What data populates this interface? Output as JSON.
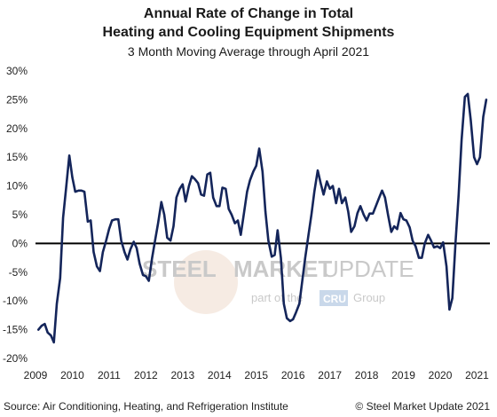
{
  "title_line1": "Annual Rate of Change in Total",
  "title_line2": "Heating and Cooling Equipment Shipments",
  "subtitle": "3 Month Moving Average through April 2021",
  "source": "Source: Air Conditioning, Heating, and Refrigeration Institute",
  "copyright": "© Steel Market Update 2021",
  "watermark": {
    "brand_a": "STEEL",
    "brand_b": "MARKET",
    "brand_c": "UPDATE",
    "tag_a": "part of the",
    "tag_b": "CRU",
    "tag_c": "Group"
  },
  "colors": {
    "line": "#14255a",
    "zero": "#000000",
    "watermark": "#c9c9c9"
  },
  "chart_data": {
    "type": "line",
    "title": "Annual Rate of Change in Total Heating and Cooling Equipment Shipments",
    "subtitle": "3 Month Moving Average through April 2021",
    "xlabel": "",
    "ylabel": "",
    "xlim": [
      2009.0,
      2021.35
    ],
    "ylim": [
      -20,
      30
    ],
    "yticks": [
      30,
      25,
      20,
      15,
      10,
      5,
      0,
      -5,
      -10,
      -15,
      -20
    ],
    "ytick_labels": [
      "30%",
      "25%",
      "20%",
      "15%",
      "10%",
      "5%",
      "0%",
      "-5%",
      "-10%",
      "-15%",
      "-20%"
    ],
    "xticks": [
      2009,
      2010,
      2011,
      2012,
      2013,
      2014,
      2015,
      2016,
      2017,
      2018,
      2019,
      2020,
      2021
    ],
    "xtick_labels": [
      "2009",
      "2010",
      "2011",
      "2012",
      "2013",
      "2014",
      "2015",
      "2016",
      "2017",
      "2018",
      "2019",
      "2020",
      "2021"
    ],
    "grid": false,
    "series": [
      {
        "points": [
          [
            2009.08,
            -15.0
          ],
          [
            2009.17,
            -14.3
          ],
          [
            2009.25,
            -14.0
          ],
          [
            2009.33,
            -15.5
          ],
          [
            2009.42,
            -16.0
          ],
          [
            2009.5,
            -17.2
          ],
          [
            2009.58,
            -10.5
          ],
          [
            2009.67,
            -6.0
          ],
          [
            2009.75,
            4.5
          ],
          [
            2009.83,
            9.5
          ],
          [
            2009.92,
            15.3
          ],
          [
            2010.0,
            11.5
          ],
          [
            2010.08,
            9.0
          ],
          [
            2010.17,
            9.2
          ],
          [
            2010.25,
            9.2
          ],
          [
            2010.33,
            9.0
          ],
          [
            2010.42,
            3.8
          ],
          [
            2010.5,
            4.0
          ],
          [
            2010.58,
            -1.5
          ],
          [
            2010.67,
            -4.0
          ],
          [
            2010.75,
            -4.8
          ],
          [
            2010.83,
            -1.5
          ],
          [
            2010.92,
            0.5
          ],
          [
            2011.0,
            2.5
          ],
          [
            2011.08,
            4.0
          ],
          [
            2011.17,
            4.2
          ],
          [
            2011.25,
            4.2
          ],
          [
            2011.33,
            0.5
          ],
          [
            2011.42,
            -1.5
          ],
          [
            2011.5,
            -2.8
          ],
          [
            2011.58,
            -1.0
          ],
          [
            2011.67,
            0.3
          ],
          [
            2011.75,
            -0.8
          ],
          [
            2011.83,
            -3.5
          ],
          [
            2011.92,
            -5.5
          ],
          [
            2012.0,
            -5.7
          ],
          [
            2012.08,
            -6.5
          ],
          [
            2012.17,
            -2.5
          ],
          [
            2012.25,
            0.5
          ],
          [
            2012.33,
            3.5
          ],
          [
            2012.42,
            7.2
          ],
          [
            2012.5,
            5.0
          ],
          [
            2012.58,
            1.0
          ],
          [
            2012.67,
            0.5
          ],
          [
            2012.75,
            3.0
          ],
          [
            2012.83,
            8.0
          ],
          [
            2012.92,
            9.5
          ],
          [
            2013.0,
            10.3
          ],
          [
            2013.08,
            7.3
          ],
          [
            2013.17,
            10.0
          ],
          [
            2013.25,
            11.7
          ],
          [
            2013.33,
            11.2
          ],
          [
            2013.42,
            10.5
          ],
          [
            2013.5,
            8.5
          ],
          [
            2013.58,
            8.3
          ],
          [
            2013.67,
            12.0
          ],
          [
            2013.75,
            12.3
          ],
          [
            2013.83,
            8.0
          ],
          [
            2013.92,
            6.5
          ],
          [
            2014.0,
            6.5
          ],
          [
            2014.08,
            9.7
          ],
          [
            2014.17,
            9.5
          ],
          [
            2014.25,
            6.0
          ],
          [
            2014.33,
            5.0
          ],
          [
            2014.42,
            3.5
          ],
          [
            2014.5,
            4.0
          ],
          [
            2014.58,
            1.5
          ],
          [
            2014.67,
            5.5
          ],
          [
            2014.75,
            9.0
          ],
          [
            2014.83,
            11.0
          ],
          [
            2014.92,
            12.5
          ],
          [
            2015.0,
            13.5
          ],
          [
            2015.08,
            16.5
          ],
          [
            2015.17,
            12.5
          ],
          [
            2015.25,
            5.5
          ],
          [
            2015.33,
            0.5
          ],
          [
            2015.42,
            -2.3
          ],
          [
            2015.5,
            -2.0
          ],
          [
            2015.58,
            2.3
          ],
          [
            2015.67,
            -2.5
          ],
          [
            2015.75,
            -10.5
          ],
          [
            2015.83,
            -13.0
          ],
          [
            2015.92,
            -13.5
          ],
          [
            2016.0,
            -13.2
          ],
          [
            2016.08,
            -12.0
          ],
          [
            2016.17,
            -10.5
          ],
          [
            2016.25,
            -6.5
          ],
          [
            2016.33,
            -2.5
          ],
          [
            2016.42,
            1.5
          ],
          [
            2016.5,
            5.0
          ],
          [
            2016.58,
            9.0
          ],
          [
            2016.67,
            12.7
          ],
          [
            2016.75,
            10.5
          ],
          [
            2016.83,
            8.5
          ],
          [
            2016.92,
            10.8
          ],
          [
            2017.0,
            9.5
          ],
          [
            2017.08,
            10.0
          ],
          [
            2017.17,
            7.0
          ],
          [
            2017.25,
            9.5
          ],
          [
            2017.33,
            7.0
          ],
          [
            2017.42,
            8.0
          ],
          [
            2017.5,
            5.5
          ],
          [
            2017.58,
            2.0
          ],
          [
            2017.67,
            3.0
          ],
          [
            2017.75,
            5.3
          ],
          [
            2017.83,
            6.5
          ],
          [
            2017.92,
            5.0
          ],
          [
            2018.0,
            4.0
          ],
          [
            2018.08,
            5.2
          ],
          [
            2018.17,
            5.2
          ],
          [
            2018.25,
            6.5
          ],
          [
            2018.33,
            7.8
          ],
          [
            2018.42,
            9.2
          ],
          [
            2018.5,
            8.0
          ],
          [
            2018.58,
            5.0
          ],
          [
            2018.67,
            2.0
          ],
          [
            2018.75,
            3.0
          ],
          [
            2018.83,
            2.5
          ],
          [
            2018.92,
            5.3
          ],
          [
            2019.0,
            4.2
          ],
          [
            2019.08,
            4.0
          ],
          [
            2019.17,
            2.8
          ],
          [
            2019.25,
            0.5
          ],
          [
            2019.33,
            -0.5
          ],
          [
            2019.42,
            -2.5
          ],
          [
            2019.5,
            -2.5
          ],
          [
            2019.58,
            0.0
          ],
          [
            2019.67,
            1.5
          ],
          [
            2019.75,
            0.5
          ],
          [
            2019.83,
            -0.7
          ],
          [
            2019.92,
            -0.5
          ],
          [
            2020.0,
            -0.8
          ],
          [
            2020.08,
            0.2
          ],
          [
            2020.17,
            -4.0
          ],
          [
            2020.25,
            -11.5
          ],
          [
            2020.33,
            -9.5
          ],
          [
            2020.42,
            0.5
          ],
          [
            2020.5,
            8.5
          ],
          [
            2020.58,
            18.0
          ],
          [
            2020.67,
            25.5
          ],
          [
            2020.75,
            26.0
          ],
          [
            2020.83,
            21.5
          ],
          [
            2020.92,
            15.0
          ],
          [
            2021.0,
            13.8
          ],
          [
            2021.08,
            15.0
          ],
          [
            2021.17,
            22.0
          ],
          [
            2021.25,
            25.0
          ]
        ]
      }
    ]
  }
}
